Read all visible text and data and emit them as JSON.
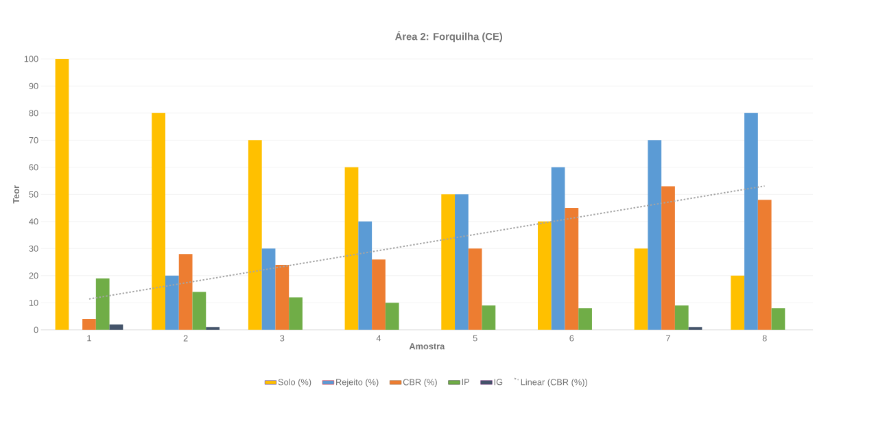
{
  "chart_data": {
    "type": "bar",
    "title": "Área 2: Forquilha (CE)",
    "xlabel": "Amostra",
    "ylabel": "Teor",
    "categories": [
      "1",
      "2",
      "3",
      "4",
      "5",
      "6",
      "7",
      "8"
    ],
    "series": [
      {
        "name": "Solo (%)",
        "color": "#ffc000",
        "values": [
          100,
          80,
          70,
          60,
          50,
          40,
          30,
          20
        ]
      },
      {
        "name": "Rejeito (%)",
        "color": "#5b9bd5",
        "values": [
          0,
          20,
          30,
          40,
          50,
          60,
          70,
          80
        ]
      },
      {
        "name": "CBR (%)",
        "color": "#ed7d31",
        "values": [
          4,
          28,
          24,
          26,
          30,
          45,
          53,
          48
        ]
      },
      {
        "name": "IP",
        "color": "#70ad47",
        "values": [
          19,
          14,
          12,
          10,
          9,
          8,
          9,
          8
        ]
      },
      {
        "name": "IG",
        "color": "#44546a",
        "values": [
          2,
          1,
          0,
          0,
          0,
          0,
          1,
          0
        ]
      },
      {
        "name": "Linear (CBR (%))",
        "type": "line",
        "line_style": "dotted",
        "color": "#a5a5a5",
        "x": [
          "1",
          "8"
        ],
        "values": [
          11.4,
          53.1
        ]
      }
    ],
    "ylim": [
      0,
      100
    ],
    "yticks": [
      0,
      10,
      20,
      30,
      40,
      50,
      60,
      70,
      80,
      90,
      100
    ],
    "grid": "y",
    "legend": "bottom"
  }
}
